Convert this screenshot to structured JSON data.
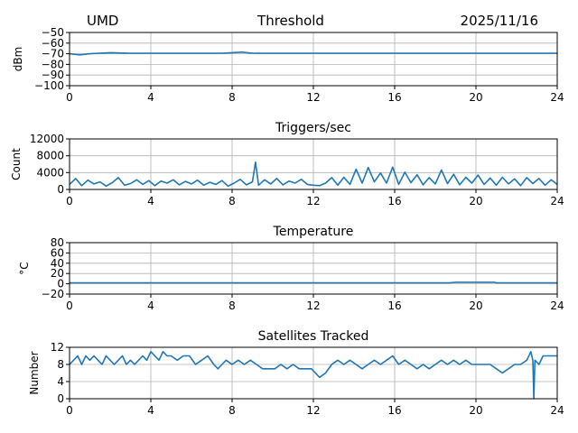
{
  "header": {
    "left": "UMD",
    "center": "Threshold",
    "right": "2025/11/16"
  },
  "colors": {
    "series": "#1f77b4",
    "grid": "#b0b0b0"
  },
  "chart_data": [
    {
      "type": "line",
      "title": "",
      "ylabel": "dBm",
      "xlim": [
        0,
        24
      ],
      "ylim": [
        -100,
        -50
      ],
      "xticks": [
        0,
        4,
        8,
        12,
        16,
        20,
        24
      ],
      "yticks": [
        -100,
        -90,
        -80,
        -70,
        -60,
        -50
      ],
      "ytick_labels": [
        "−100",
        "−90",
        "−80",
        "−70",
        "−60",
        "−50"
      ],
      "grid": true,
      "series": [
        {
          "x": [
            0,
            0.5,
            1,
            2,
            3,
            4,
            5,
            6,
            7,
            7.5,
            8,
            8.5,
            9,
            10,
            11,
            12,
            13,
            14,
            15,
            16,
            17,
            18,
            19,
            20,
            21,
            22,
            23,
            24
          ],
          "values": [
            -70,
            -71,
            -70,
            -69,
            -69.5,
            -69.5,
            -69.5,
            -69.5,
            -69.5,
            -69.5,
            -69,
            -68.5,
            -69.5,
            -69.5,
            -69.5,
            -69.5,
            -69.5,
            -69.5,
            -69.5,
            -69.5,
            -69.5,
            -69.5,
            -69.5,
            -69.5,
            -69.5,
            -69.5,
            -69.5,
            -69.5
          ]
        }
      ]
    },
    {
      "type": "line",
      "title": "Triggers/sec",
      "ylabel": "Count",
      "xlim": [
        0,
        24
      ],
      "ylim": [
        0,
        12000
      ],
      "xticks": [
        0,
        4,
        8,
        12,
        16,
        20,
        24
      ],
      "yticks": [
        0,
        4000,
        8000,
        12000
      ],
      "grid": true,
      "series": [
        {
          "x": [
            0,
            0.3,
            0.6,
            0.9,
            1.2,
            1.5,
            1.8,
            2.1,
            2.4,
            2.7,
            3.0,
            3.3,
            3.6,
            3.9,
            4.2,
            4.5,
            4.8,
            5.1,
            5.4,
            5.7,
            6.0,
            6.3,
            6.6,
            6.9,
            7.2,
            7.5,
            7.8,
            8.1,
            8.4,
            8.7,
            9.0,
            9.15,
            9.3,
            9.6,
            9.9,
            10.2,
            10.5,
            10.8,
            11.1,
            11.4,
            11.7,
            12.0,
            12.3,
            12.6,
            12.9,
            13.2,
            13.5,
            13.8,
            14.1,
            14.4,
            14.7,
            15.0,
            15.3,
            15.6,
            15.9,
            16.2,
            16.5,
            16.8,
            17.1,
            17.4,
            17.7,
            18.0,
            18.3,
            18.6,
            18.9,
            19.2,
            19.5,
            19.8,
            20.1,
            20.4,
            20.7,
            21.0,
            21.3,
            21.6,
            21.9,
            22.2,
            22.5,
            22.8,
            23.1,
            23.4,
            23.7,
            24.0
          ],
          "values": [
            1200,
            2600,
            900,
            2200,
            1300,
            1800,
            800,
            1600,
            2800,
            1000,
            1400,
            2300,
            1200,
            2100,
            900,
            2000,
            1500,
            2300,
            1100,
            1900,
            1300,
            2200,
            1000,
            1700,
            1200,
            2100,
            800,
            1500,
            2400,
            1100,
            1800,
            6500,
            1000,
            2300,
            1300,
            2600,
            1100,
            2000,
            1500,
            2400,
            1200,
            1000,
            900,
            1500,
            2800,
            1000,
            2900,
            1200,
            4800,
            1500,
            5200,
            1800,
            3900,
            1500,
            5300,
            1200,
            4100,
            1600,
            3500,
            1100,
            2800,
            1300,
            4600,
            1400,
            3600,
            1100,
            2900,
            1500,
            3400,
            1200,
            2700,
            1000,
            2900,
            1300,
            2500,
            900,
            2800,
            1400,
            2600,
            1000,
            2300,
            1200
          ]
        }
      ]
    },
    {
      "type": "line",
      "title": "Temperature",
      "ylabel": "°C",
      "xlim": [
        0,
        24
      ],
      "ylim": [
        -20,
        80
      ],
      "xticks": [
        0,
        4,
        8,
        12,
        16,
        20,
        24
      ],
      "yticks": [
        -20,
        0,
        20,
        40,
        60,
        80
      ],
      "ytick_labels": [
        "−20",
        "0",
        "20",
        "40",
        "60",
        "80"
      ],
      "grid": true,
      "series": [
        {
          "x": [
            0,
            2,
            4,
            6,
            8,
            10,
            12,
            14,
            16,
            18,
            18.7,
            19,
            20,
            20.9,
            21,
            22,
            23,
            24
          ],
          "values": [
            2,
            2,
            2,
            2,
            2,
            2,
            2,
            2,
            2,
            2,
            2,
            3,
            3,
            3,
            2,
            2,
            2,
            2
          ]
        }
      ]
    },
    {
      "type": "line",
      "title": "Satellites Tracked",
      "ylabel": "Number",
      "xlim": [
        0,
        24
      ],
      "ylim": [
        0,
        12
      ],
      "xticks": [
        0,
        4,
        8,
        12,
        16,
        20,
        24
      ],
      "yticks": [
        0,
        4,
        8,
        12
      ],
      "grid": true,
      "series": [
        {
          "x": [
            0,
            0.2,
            0.4,
            0.6,
            0.8,
            1.0,
            1.2,
            1.4,
            1.6,
            1.8,
            2.0,
            2.2,
            2.4,
            2.6,
            2.8,
            3.0,
            3.2,
            3.4,
            3.6,
            3.8,
            4.0,
            4.2,
            4.4,
            4.6,
            4.8,
            5.0,
            5.3,
            5.6,
            5.9,
            6.2,
            6.5,
            6.8,
            7.1,
            7.3,
            7.5,
            7.7,
            8.0,
            8.3,
            8.6,
            8.9,
            9.2,
            9.5,
            9.8,
            10.1,
            10.4,
            10.7,
            11.0,
            11.3,
            11.6,
            11.9,
            12.1,
            12.3,
            12.6,
            12.9,
            13.2,
            13.5,
            13.8,
            14.1,
            14.4,
            14.7,
            15.0,
            15.3,
            15.6,
            15.9,
            16.2,
            16.5,
            16.8,
            17.1,
            17.4,
            17.7,
            18.0,
            18.3,
            18.6,
            18.9,
            19.2,
            19.5,
            19.8,
            20.1,
            20.4,
            20.7,
            21.0,
            21.3,
            21.6,
            21.9,
            22.2,
            22.5,
            22.7,
            22.8,
            22.85,
            22.9,
            23.1,
            23.3,
            23.6,
            24.0
          ],
          "values": [
            8,
            9,
            10,
            8,
            10,
            9,
            10,
            9,
            8,
            10,
            9,
            8,
            9,
            10,
            8,
            9,
            8,
            9,
            10,
            9,
            11,
            10,
            9,
            11,
            10,
            10,
            9,
            10,
            10,
            8,
            9,
            10,
            8,
            7,
            8,
            9,
            8,
            9,
            8,
            9,
            8,
            7,
            7,
            7,
            8,
            7,
            8,
            7,
            7,
            7,
            6,
            5,
            6,
            8,
            9,
            8,
            9,
            8,
            7,
            8,
            9,
            8,
            9,
            10,
            8,
            9,
            8,
            7,
            8,
            7,
            8,
            9,
            8,
            9,
            8,
            9,
            8,
            8,
            8,
            8,
            7,
            6,
            7,
            8,
            8,
            9,
            11,
            9,
            0,
            9,
            8,
            10,
            10,
            10
          ]
        }
      ]
    }
  ]
}
